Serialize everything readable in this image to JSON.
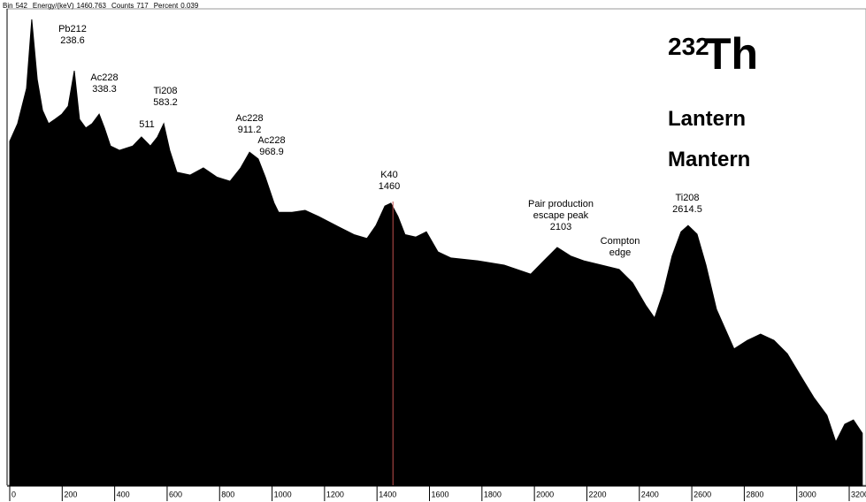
{
  "chart_data": {
    "type": "area",
    "status": [
      {
        "label": "Bin",
        "value": 542
      },
      {
        "label": "Energy/(keV)",
        "value": 1460.763
      },
      {
        "label": "Counts",
        "value": 717
      },
      {
        "label": "Percent",
        "value": 0.039
      }
    ],
    "isotope": {
      "mass": "232",
      "symbol": "Th"
    },
    "samples": [
      "Lantern",
      "Mantern"
    ],
    "color": "#000000",
    "cursor_color": "#c0504d",
    "x": [
      0,
      30,
      64,
      84,
      105,
      125,
      148,
      172,
      199,
      223,
      246,
      266,
      290,
      314,
      341,
      361,
      384,
      418,
      469,
      502,
      536,
      563,
      587,
      610,
      637,
      688,
      738,
      789,
      840,
      880,
      914,
      947,
      974,
      1008,
      1025,
      1076,
      1126,
      1177,
      1244,
      1312,
      1362,
      1396,
      1430,
      1453,
      1480,
      1507,
      1548,
      1588,
      1632,
      1682,
      1784,
      1885,
      1986,
      2036,
      2087,
      2138,
      2188,
      2256,
      2323,
      2374,
      2424,
      2458,
      2492,
      2525,
      2559,
      2586,
      2620,
      2654,
      2694,
      2761,
      2812,
      2862,
      2913,
      2964,
      3014,
      3065,
      3115,
      3149,
      3183,
      3216,
      3250
    ],
    "values": [
      72.2,
      75.9,
      83.3,
      97.8,
      85.2,
      78.7,
      75.9,
      76.8,
      77.9,
      79.6,
      87.0,
      76.8,
      75.0,
      75.9,
      77.9,
      75.0,
      71.2,
      70.3,
      71.2,
      73.1,
      71.2,
      73.1,
      75.9,
      70.3,
      65.7,
      65.1,
      66.6,
      64.7,
      63.8,
      66.6,
      69.9,
      68.5,
      64.7,
      59.2,
      57.3,
      57.3,
      57.7,
      56.4,
      54.5,
      52.6,
      51.8,
      54.5,
      58.6,
      59.2,
      56.4,
      52.6,
      52.1,
      53.2,
      49.0,
      47.7,
      47.1,
      46.2,
      44.3,
      47.1,
      49.9,
      48.1,
      47.1,
      46.2,
      45.3,
      42.5,
      37.8,
      35.1,
      40.6,
      48.1,
      53.2,
      54.5,
      52.7,
      46.2,
      36.9,
      28.6,
      30.4,
      31.7,
      30.4,
      27.6,
      23.0,
      18.4,
      14.7,
      9.1,
      12.8,
      13.7,
      10.9
    ],
    "xlim": [
      0,
      3264
    ],
    "ylim": [
      0,
      100
    ],
    "xticks": [
      0,
      200,
      400,
      600,
      800,
      1000,
      1200,
      1400,
      1600,
      1800,
      2000,
      2200,
      2400,
      2600,
      2800,
      3000,
      3200
    ],
    "annotations": [
      {
        "lines": [
          "Pb212",
          "238.6"
        ]
      },
      {
        "lines": [
          "Ac228",
          "338.3"
        ]
      },
      {
        "lines": [
          "511"
        ]
      },
      {
        "lines": [
          "Ti208",
          "583.2"
        ]
      },
      {
        "lines": [
          "Ac228",
          "911.2"
        ]
      },
      {
        "lines": [
          "Ac228",
          "968.9"
        ]
      },
      {
        "lines": [
          "K40",
          "1460"
        ]
      },
      {
        "lines": [
          "Pair production",
          "escape peak",
          "2103"
        ]
      },
      {
        "lines": [
          "Compton",
          "edge"
        ]
      },
      {
        "lines": [
          "Ti208",
          "2614.5"
        ]
      }
    ]
  }
}
